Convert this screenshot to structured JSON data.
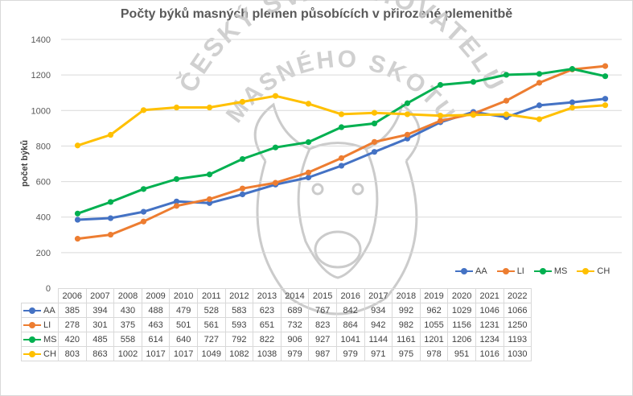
{
  "chart_data": {
    "type": "line",
    "title": "Počty býků masných plemen působících v přirozené plemenitbě",
    "ylabel": "počet býků",
    "xlabel": "",
    "ylim": [
      0,
      1400
    ],
    "yticks": [
      0,
      200,
      400,
      600,
      800,
      1000,
      1200,
      1400
    ],
    "grid": true,
    "legend": "bottom-right",
    "categories": [
      "2006",
      "2007",
      "2008",
      "2009",
      "2010",
      "2011",
      "2012",
      "2013",
      "2014",
      "2015",
      "2016",
      "2017",
      "2018",
      "2019",
      "2020",
      "2021",
      "2022"
    ],
    "series": [
      {
        "name": "AA",
        "color": "#4472c4",
        "values": [
          385,
          394,
          430,
          488,
          479,
          528,
          583,
          623,
          689,
          767,
          842,
          934,
          992,
          962,
          1029,
          1046,
          1066
        ]
      },
      {
        "name": "LI",
        "color": "#ed7d31",
        "values": [
          278,
          301,
          375,
          463,
          501,
          561,
          593,
          651,
          732,
          823,
          864,
          942,
          982,
          1055,
          1156,
          1231,
          1250
        ]
      },
      {
        "name": "MS",
        "color": "#00b050",
        "values": [
          420,
          485,
          558,
          614,
          640,
          727,
          792,
          822,
          906,
          927,
          1041,
          1144,
          1161,
          1201,
          1206,
          1234,
          1193
        ]
      },
      {
        "name": "CH",
        "color": "#ffc000",
        "values": [
          803,
          863,
          1002,
          1017,
          1017,
          1049,
          1082,
          1038,
          979,
          987,
          979,
          971,
          975,
          978,
          951,
          1016,
          1030
        ]
      }
    ]
  },
  "watermark": {
    "line1": "ČESKÝ SVAZ CHOVATELŮ",
    "line2": "MASNÉHO SKOTU",
    "icon": "bull-head-icon"
  }
}
